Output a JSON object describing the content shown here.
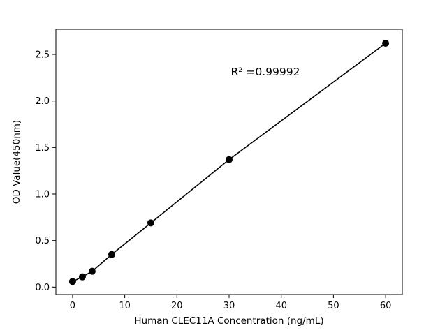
{
  "chart_data": {
    "type": "scatter",
    "title": "",
    "xlabel": "Human CLEC11A Concentration (ng/mL)",
    "ylabel": "OD Value(450nm)",
    "annotation": "R² =0.99992",
    "x": [
      0,
      1.875,
      3.75,
      7.5,
      15,
      30,
      60
    ],
    "y": [
      0.06,
      0.11,
      0.17,
      0.35,
      0.69,
      1.37,
      2.62
    ],
    "xticks": [
      0,
      10,
      20,
      30,
      40,
      50,
      60
    ],
    "xtick_labels": [
      "0",
      "10",
      "20",
      "30",
      "40",
      "50",
      "60"
    ],
    "yticks": [
      0.0,
      0.5,
      1.0,
      1.5,
      2.0,
      2.5
    ],
    "ytick_labels": [
      "0.0",
      "0.5",
      "1.0",
      "1.5",
      "2.0",
      "2.5"
    ],
    "xlim": [
      -3.2,
      63.2
    ],
    "ylim": [
      -0.08,
      2.77
    ],
    "grid": false,
    "legend": null,
    "line_through_points": true,
    "colors": {
      "marker": "#000000",
      "line": "#000000",
      "axis": "#000000",
      "background": "#ffffff"
    }
  }
}
